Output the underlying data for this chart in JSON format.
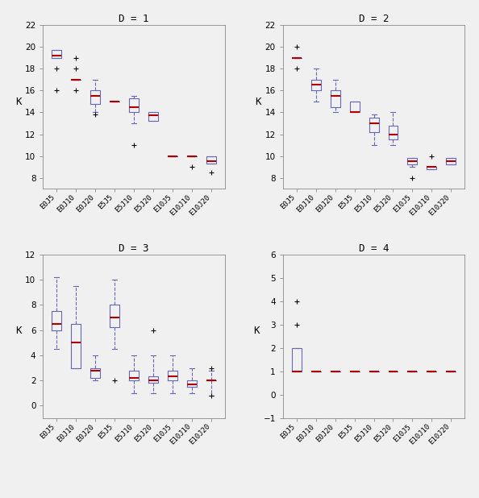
{
  "categories": [
    "E0J5",
    "E0J10",
    "E0J20",
    "E5J5",
    "E5J10",
    "E5J20",
    "E10J5",
    "E10J10",
    "E10J20"
  ],
  "panel_titles": [
    "D = 1",
    "D = 2",
    "D = 3",
    "D = 4"
  ],
  "ylabel": "K",
  "d1": {
    "ylim": [
      7,
      22
    ],
    "yticks": [
      8,
      10,
      12,
      14,
      16,
      18,
      20,
      22
    ],
    "boxes": [
      {
        "q1": 19.0,
        "median": 19.2,
        "q3": 19.7,
        "whislo": 19.0,
        "whishi": 19.7,
        "fliers": [
          18.0,
          16.0
        ]
      },
      {
        "q1": 17.0,
        "median": 17.0,
        "q3": 17.0,
        "whislo": 17.0,
        "whishi": 17.0,
        "fliers": [
          18.0,
          16.0,
          19.0
        ]
      },
      {
        "q1": 14.8,
        "median": 15.5,
        "q3": 16.0,
        "whislo": 14.0,
        "whishi": 17.0,
        "fliers": [
          13.8
        ]
      },
      {
        "q1": 15.0,
        "median": 15.0,
        "q3": 15.0,
        "whislo": 15.0,
        "whishi": 15.0,
        "fliers": []
      },
      {
        "q1": 14.0,
        "median": 14.5,
        "q3": 15.3,
        "whislo": 13.0,
        "whishi": 15.5,
        "fliers": [
          11.0
        ]
      },
      {
        "q1": 13.2,
        "median": 13.7,
        "q3": 14.0,
        "whislo": 13.2,
        "whishi": 14.0,
        "fliers": []
      },
      {
        "q1": 10.0,
        "median": 10.0,
        "q3": 10.0,
        "whislo": 10.0,
        "whishi": 10.0,
        "fliers": []
      },
      {
        "q1": 10.0,
        "median": 10.0,
        "q3": 10.0,
        "whislo": 10.0,
        "whishi": 10.0,
        "fliers": [
          9.0
        ]
      },
      {
        "q1": 9.3,
        "median": 9.5,
        "q3": 10.0,
        "whislo": 9.3,
        "whishi": 10.0,
        "fliers": [
          8.5
        ]
      }
    ]
  },
  "d2": {
    "ylim": [
      7,
      22
    ],
    "yticks": [
      8,
      10,
      12,
      14,
      16,
      18,
      20,
      22
    ],
    "boxes": [
      {
        "q1": 19.0,
        "median": 19.0,
        "q3": 19.0,
        "whislo": 19.0,
        "whishi": 19.0,
        "fliers": [
          18.0,
          20.0
        ]
      },
      {
        "q1": 16.0,
        "median": 16.5,
        "q3": 17.0,
        "whislo": 15.0,
        "whishi": 18.0,
        "fliers": []
      },
      {
        "q1": 14.5,
        "median": 15.5,
        "q3": 16.0,
        "whislo": 14.0,
        "whishi": 17.0,
        "fliers": []
      },
      {
        "q1": 14.0,
        "median": 14.0,
        "q3": 15.0,
        "whislo": 14.0,
        "whishi": 15.0,
        "fliers": []
      },
      {
        "q1": 12.2,
        "median": 13.0,
        "q3": 13.5,
        "whislo": 11.0,
        "whishi": 13.8,
        "fliers": []
      },
      {
        "q1": 11.5,
        "median": 12.0,
        "q3": 12.8,
        "whislo": 11.0,
        "whishi": 14.0,
        "fliers": []
      },
      {
        "q1": 9.2,
        "median": 9.5,
        "q3": 9.8,
        "whislo": 9.0,
        "whishi": 9.8,
        "fliers": [
          8.0
        ]
      },
      {
        "q1": 8.8,
        "median": 9.0,
        "q3": 9.0,
        "whislo": 8.8,
        "whishi": 9.0,
        "fliers": [
          10.0
        ]
      },
      {
        "q1": 9.2,
        "median": 9.5,
        "q3": 9.8,
        "whislo": 9.2,
        "whishi": 9.8,
        "fliers": []
      }
    ]
  },
  "d3": {
    "ylim": [
      -1,
      12
    ],
    "yticks": [
      0,
      2,
      4,
      6,
      8,
      10,
      12
    ],
    "boxes": [
      {
        "q1": 6.0,
        "median": 6.5,
        "q3": 7.5,
        "whislo": 4.5,
        "whishi": 10.2,
        "fliers": []
      },
      {
        "q1": 3.0,
        "median": 5.0,
        "q3": 6.5,
        "whislo": 3.0,
        "whishi": 9.5,
        "fliers": []
      },
      {
        "q1": 2.2,
        "median": 2.8,
        "q3": 3.0,
        "whislo": 2.0,
        "whishi": 4.0,
        "fliers": []
      },
      {
        "q1": 6.2,
        "median": 7.0,
        "q3": 8.0,
        "whislo": 4.5,
        "whishi": 10.0,
        "fliers": [
          2.0
        ]
      },
      {
        "q1": 2.0,
        "median": 2.2,
        "q3": 2.8,
        "whislo": 1.0,
        "whishi": 4.0,
        "fliers": []
      },
      {
        "q1": 1.8,
        "median": 2.0,
        "q3": 2.3,
        "whislo": 1.0,
        "whishi": 4.0,
        "fliers": [
          6.0
        ]
      },
      {
        "q1": 2.0,
        "median": 2.3,
        "q3": 2.8,
        "whislo": 1.0,
        "whishi": 4.0,
        "fliers": []
      },
      {
        "q1": 1.5,
        "median": 1.7,
        "q3": 2.0,
        "whislo": 1.0,
        "whishi": 3.0,
        "fliers": []
      },
      {
        "q1": 2.0,
        "median": 2.0,
        "q3": 2.0,
        "whislo": 0.8,
        "whishi": 2.8,
        "fliers": [
          3.0,
          0.8
        ]
      }
    ]
  },
  "d4": {
    "ylim": [
      -1,
      6
    ],
    "yticks": [
      -1,
      0,
      1,
      2,
      3,
      4,
      5,
      6
    ],
    "boxes": [
      {
        "q1": 1.0,
        "median": 1.0,
        "q3": 2.0,
        "whislo": 1.0,
        "whishi": 2.0,
        "fliers": [
          4.0,
          3.0
        ]
      },
      {
        "q1": 1.0,
        "median": 1.0,
        "q3": 1.0,
        "whislo": 1.0,
        "whishi": 1.0,
        "fliers": []
      },
      {
        "q1": 1.0,
        "median": 1.0,
        "q3": 1.0,
        "whislo": 1.0,
        "whishi": 1.0,
        "fliers": []
      },
      {
        "q1": 1.0,
        "median": 1.0,
        "q3": 1.0,
        "whislo": 1.0,
        "whishi": 1.0,
        "fliers": []
      },
      {
        "q1": 1.0,
        "median": 1.0,
        "q3": 1.0,
        "whislo": 1.0,
        "whishi": 1.0,
        "fliers": []
      },
      {
        "q1": 1.0,
        "median": 1.0,
        "q3": 1.0,
        "whislo": 1.0,
        "whishi": 1.0,
        "fliers": []
      },
      {
        "q1": 1.0,
        "median": 1.0,
        "q3": 1.0,
        "whislo": 1.0,
        "whishi": 1.0,
        "fliers": []
      },
      {
        "q1": 1.0,
        "median": 1.0,
        "q3": 1.0,
        "whislo": 1.0,
        "whishi": 1.0,
        "fliers": []
      },
      {
        "q1": 1.0,
        "median": 1.0,
        "q3": 1.0,
        "whislo": 1.0,
        "whishi": 1.0,
        "fliers": []
      }
    ]
  },
  "box_color": "#6666bb",
  "median_color": "#aa0000",
  "flier_color": "#333333",
  "whisker_color": "#6666bb",
  "cap_color": "#6666bb",
  "bg_color": "#f0f0f0"
}
